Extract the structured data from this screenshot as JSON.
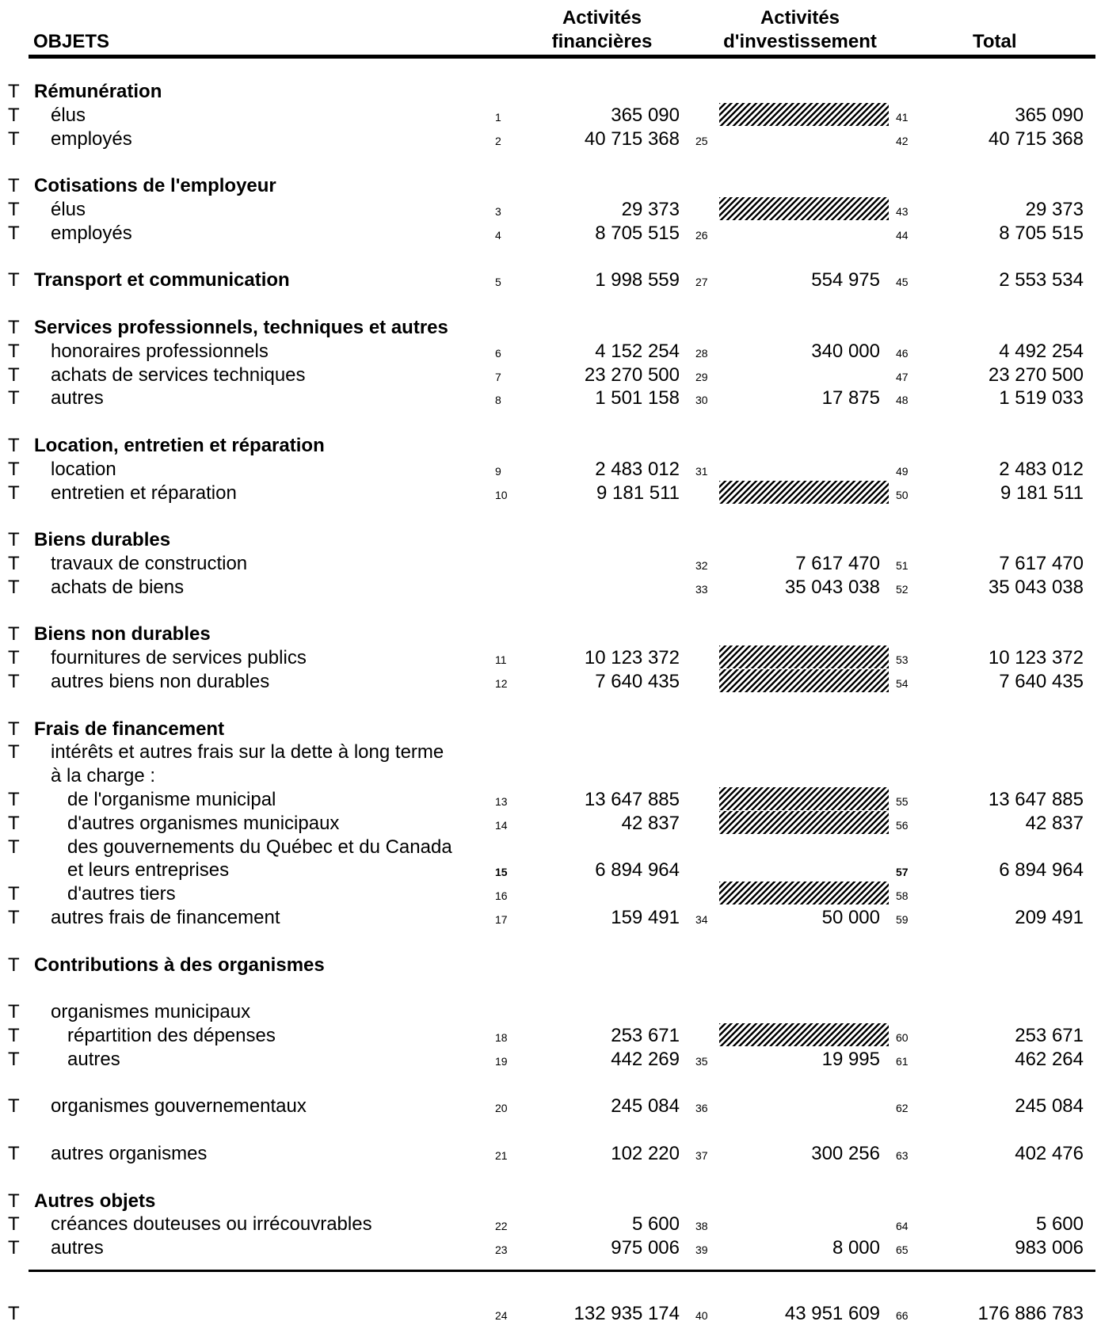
{
  "header": {
    "objets": "OBJETS",
    "activites_financieres": [
      "Activités",
      "financières"
    ],
    "activites_investissement": [
      "Activités",
      "d'investissement"
    ],
    "total": "Total"
  },
  "rows": [
    {
      "t": "T",
      "label": "Rémunération",
      "bold": true
    },
    {
      "t": "T",
      "label": "élus",
      "indent": 1,
      "c1": "1",
      "v1": "365 090",
      "hatch": true,
      "c3": "41",
      "v3": "365 090"
    },
    {
      "t": "T",
      "label": "employés",
      "indent": 1,
      "c1": "2",
      "v1": "40 715 368",
      "c2": "25",
      "c3": "42",
      "v3": "40 715 368"
    },
    {
      "gap": true
    },
    {
      "t": "T",
      "label": "Cotisations de l'employeur",
      "bold": true
    },
    {
      "t": "T",
      "label": "élus",
      "indent": 1,
      "c1": "3",
      "v1": "29 373",
      "hatch": true,
      "c3": "43",
      "v3": "29 373"
    },
    {
      "t": "T",
      "label": "employés",
      "indent": 1,
      "c1": "4",
      "v1": "8 705 515",
      "c2": "26",
      "c3": "44",
      "v3": "8 705 515"
    },
    {
      "gap": true
    },
    {
      "t": "T",
      "label": "Transport et communication",
      "bold": true,
      "c1": "5",
      "v1": "1 998 559",
      "c2": "27",
      "v2": "554 975",
      "c3": "45",
      "v3": "2 553 534"
    },
    {
      "gap": true
    },
    {
      "t": "T",
      "label": "Services professionnels, techniques et autres",
      "bold": true
    },
    {
      "t": "T",
      "label": "honoraires professionnels",
      "indent": 1,
      "c1": "6",
      "v1": "4 152 254",
      "c2": "28",
      "v2": "340 000",
      "c3": "46",
      "v3": "4 492 254"
    },
    {
      "t": "T",
      "label": "achats de services techniques",
      "indent": 1,
      "c1": "7",
      "v1": "23 270 500",
      "c2": "29",
      "c3": "47",
      "v3": "23 270 500"
    },
    {
      "t": "T",
      "label": "autres",
      "indent": 1,
      "c1": "8",
      "v1": "1 501 158",
      "c2": "30",
      "v2": "17 875",
      "c3": "48",
      "v3": "1 519 033"
    },
    {
      "gap": true
    },
    {
      "t": "T",
      "label": "Location, entretien et réparation",
      "bold": true
    },
    {
      "t": "T",
      "label": "location",
      "indent": 1,
      "c1": "9",
      "v1": "2 483 012",
      "c2": "31",
      "c3": "49",
      "v3": "2 483 012"
    },
    {
      "t": "T",
      "label": "entretien et réparation",
      "indent": 1,
      "c1": "10",
      "v1": "9 181 511",
      "hatch": true,
      "c3": "50",
      "v3": "9 181 511"
    },
    {
      "gap": true
    },
    {
      "t": "T",
      "label": "Biens durables",
      "bold": true
    },
    {
      "t": "T",
      "label": "travaux de construction",
      "indent": 1,
      "c2": "32",
      "v2": "7 617 470",
      "c3": "51",
      "v3": "7 617 470"
    },
    {
      "t": "T",
      "label": "achats de biens",
      "indent": 1,
      "c2": "33",
      "v2": "35 043 038",
      "c3": "52",
      "v3": "35 043 038"
    },
    {
      "gap": true
    },
    {
      "t": "T",
      "label": "Biens non durables",
      "bold": true
    },
    {
      "t": "T",
      "label": "fournitures de services publics",
      "indent": 1,
      "c1": "11",
      "v1": "10 123 372",
      "hatch": true,
      "c3": "53",
      "v3": "10 123 372"
    },
    {
      "t": "T",
      "label": "autres biens non durables",
      "indent": 1,
      "c1": "12",
      "v1": "7 640 435",
      "hatch": true,
      "c3": "54",
      "v3": "7 640 435"
    },
    {
      "gap": true
    },
    {
      "t": "T",
      "label": "Frais de financement",
      "bold": true
    },
    {
      "t": "T",
      "label": "intérêts et autres frais sur la dette à long terme",
      "indent": 1
    },
    {
      "label": "à la charge :",
      "indent": 1
    },
    {
      "t": "T",
      "label": "de l'organisme municipal",
      "indent": 2,
      "c1": "13",
      "v1": "13 647 885",
      "hatch": true,
      "c3": "55",
      "v3": "13 647 885"
    },
    {
      "t": "T",
      "label": "d'autres organismes municipaux",
      "indent": 2,
      "c1": "14",
      "v1": "42 837",
      "hatch": true,
      "c3": "56",
      "v3": "42 837"
    },
    {
      "t": "T",
      "label": "des gouvernements du Québec et du Canada",
      "indent": 2
    },
    {
      "label": "et leurs entreprises",
      "indent": 2,
      "c1": "15",
      "v1": "6 894 964",
      "c3": "57",
      "v3": "6 894 964",
      "codebold": true
    },
    {
      "t": "T",
      "label": "d'autres tiers",
      "indent": 2,
      "c1": "16",
      "hatch": true,
      "c3": "58"
    },
    {
      "t": "T",
      "label": "autres frais de financement",
      "indent": 1,
      "c1": "17",
      "v1": "159 491",
      "c2": "34",
      "v2": "50 000",
      "c3": "59",
      "v3": "209 491"
    },
    {
      "gap": true
    },
    {
      "t": "T",
      "label": "Contributions à des organismes",
      "bold": true
    },
    {
      "gap": true
    },
    {
      "t": "T",
      "label": "organismes municipaux",
      "indent": 1
    },
    {
      "t": "T",
      "label": "répartition des dépenses",
      "indent": 2,
      "c1": "18",
      "v1": "253 671",
      "hatch": true,
      "c3": "60",
      "v3": "253 671"
    },
    {
      "t": "T",
      "label": "autres",
      "indent": 2,
      "c1": "19",
      "v1": "442 269",
      "c2": "35",
      "v2": "19 995",
      "c3": "61",
      "v3": "462 264"
    },
    {
      "gap": true
    },
    {
      "t": "T",
      "label": "organismes gouvernementaux",
      "indent": 1,
      "c1": "20",
      "v1": "245 084",
      "c2": "36",
      "c3": "62",
      "v3": "245 084"
    },
    {
      "gap": true
    },
    {
      "t": "T",
      "label": "autres organismes",
      "indent": 1,
      "c1": "21",
      "v1": "102 220",
      "c2": "37",
      "v2": "300 256",
      "c3": "63",
      "v3": "402 476"
    },
    {
      "gap": true
    },
    {
      "t": "T",
      "label": "Autres objets",
      "bold": true
    },
    {
      "t": "T",
      "label": "créances douteuses ou irrécouvrables",
      "indent": 1,
      "c1": "22",
      "v1": "5 600",
      "c2": "38",
      "c3": "64",
      "v3": "5 600"
    },
    {
      "t": "T",
      "label": "autres",
      "indent": 1,
      "c1": "23",
      "v1": "975 006",
      "c2": "39",
      "v2": "8 000",
      "c3": "65",
      "v3": "983 006"
    }
  ],
  "total_row": {
    "t": "T",
    "c1": "24",
    "v1": "132 935 174",
    "c2": "40",
    "v2": "43 951 609",
    "c3": "66",
    "v3": "176 886 783"
  }
}
